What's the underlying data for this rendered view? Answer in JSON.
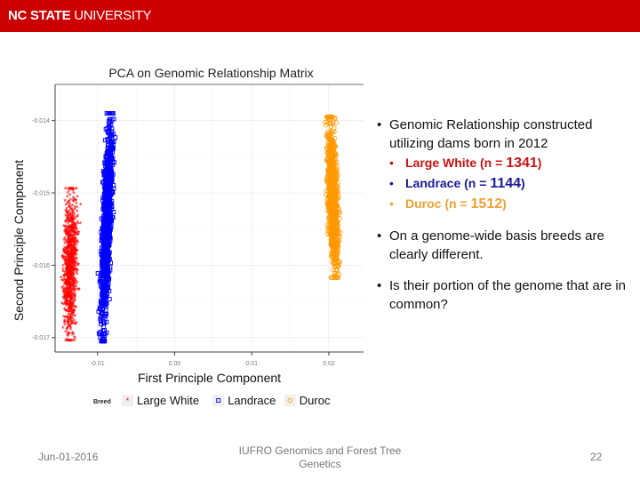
{
  "header": {
    "brand_bold": "NC STATE",
    "brand_light": " UNIVERSITY",
    "color": "#cc0000"
  },
  "chart_data": {
    "type": "scatter",
    "title": "PCA on Genomic Relationship Matrix",
    "xlabel": "First Principle Component",
    "ylabel": "Second Principle Component",
    "xlim": [
      -0.0155,
      0.0245
    ],
    "ylim": [
      -0.0172,
      -0.0135
    ],
    "x_ticks": [
      "-0.01",
      "0.00",
      "0.01",
      "0.02"
    ],
    "x_tick_values": [
      -0.01,
      0.0,
      0.01,
      0.02
    ],
    "y_ticks": [
      "-0.014",
      "-0.015",
      "-0.016",
      "-0.017"
    ],
    "y_tick_values": [
      -0.014,
      -0.015,
      -0.016,
      -0.017
    ],
    "grid": true,
    "legend_title": "Breed",
    "legend_position": "bottom",
    "series": [
      {
        "name": "Large White",
        "marker": "asterisk",
        "color": "#ff0000",
        "n": 1341,
        "x_center": -0.0135,
        "x_spread": 0.0012,
        "y_range": [
          -0.01705,
          -0.01495
        ]
      },
      {
        "name": "Landrace",
        "marker": "square",
        "color": "#0000ff",
        "n": 1144,
        "x_center": -0.0088,
        "x_spread": 0.0008,
        "y_range": [
          -0.01705,
          -0.0139
        ]
      },
      {
        "name": "Duroc",
        "marker": "circle",
        "color": "#ff9900",
        "n": 1512,
        "x_center": 0.0205,
        "x_spread": 0.0009,
        "y_range": [
          -0.01617,
          -0.01395
        ]
      }
    ]
  },
  "bullets": {
    "main1_line1": "Genomic Relationship constructed",
    "main1_line2": "utilizing dams born in 2012",
    "sub": [
      {
        "label": "Large White (n = ",
        "n": "1341",
        "close": ")",
        "color": "#cc1111"
      },
      {
        "label": "Landrace (n = ",
        "n": "1144",
        "close": ")",
        "color": "#1a1a99"
      },
      {
        "label": "Duroc (n = ",
        "n": "1512",
        "close": ")",
        "color": "#f0a030"
      }
    ],
    "main2": "On a genome-wide basis breeds are clearly different.",
    "main3": "Is their portion of the genome that are in common?"
  },
  "footer": {
    "date": "Jun-01-2016",
    "center": "IUFRO Genomics and Forest Tree Genetics",
    "page": "22"
  }
}
